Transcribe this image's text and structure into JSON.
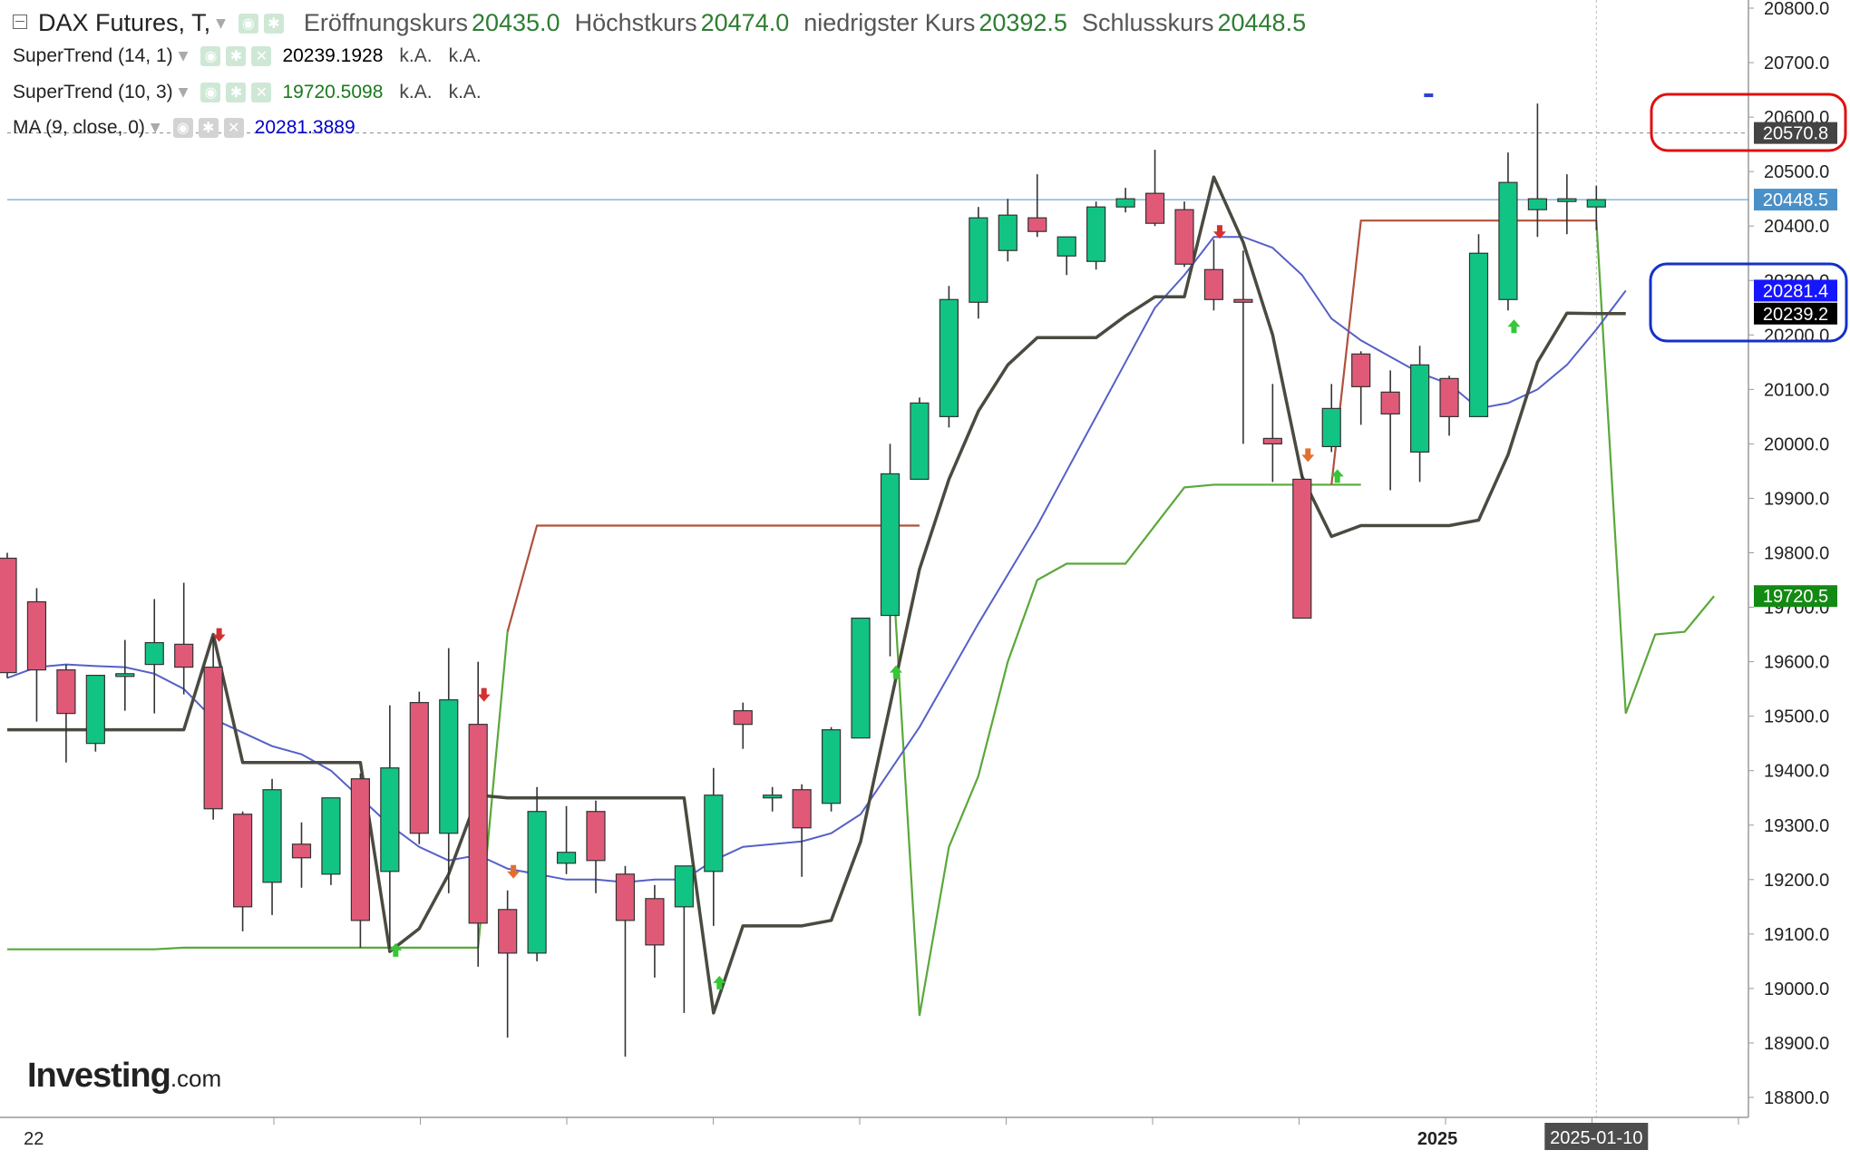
{
  "header": {
    "instrument": "DAX Futures, T,",
    "ohlc": [
      {
        "label": "Eröffnungskurs",
        "value": "20435.0"
      },
      {
        "label": "Höchstkurs",
        "value": "20474.0"
      },
      {
        "label": "niedrigster Kurs",
        "value": "20392.5"
      },
      {
        "label": "Schlusskurs",
        "value": "20448.5"
      }
    ]
  },
  "indicators": [
    {
      "name": "SuperTrend (14, 1)",
      "value": "20239.1928",
      "extra1": "k.A.",
      "extra2": "k.A.",
      "color": "#000000"
    },
    {
      "name": "SuperTrend (10, 3)",
      "value": "19720.5098",
      "extra1": "k.A.",
      "extra2": "k.A.",
      "color": "#1a7a1a"
    },
    {
      "name": "MA (9, close, 0)",
      "value": "20281.3889",
      "color": "#0000cc"
    }
  ],
  "logo": {
    "main": "Investing",
    "suffix": ".com"
  },
  "price_labels": [
    {
      "text": "20570.8",
      "value": 20570.8,
      "bg": "#444444",
      "fg": "#ffffff"
    },
    {
      "text": "20448.5",
      "value": 20448.5,
      "bg": "#4a90c8",
      "fg": "#ffffff"
    },
    {
      "text": "20281.4",
      "value": 20281.4,
      "bg": "#1515ff",
      "fg": "#ffffff"
    },
    {
      "text": "20239.2",
      "value": 20239.2,
      "bg": "#000000",
      "fg": "#ffffff"
    },
    {
      "text": "19720.5",
      "value": 19720.5,
      "bg": "#138a13",
      "fg": "#ffffff"
    }
  ],
  "x_axis_labels": [
    {
      "text": "22",
      "index": 0.9
    },
    {
      "text": "2025",
      "index": 48.6
    }
  ],
  "crosshair_date": "2025-01-10",
  "colors": {
    "up": "#12c483",
    "down": "#e05a78",
    "ma": "#5560c8",
    "supertrend_14_1": "#4a4a40",
    "supertrend_10_3_down": "#b0503c",
    "supertrend_10_3_up": "#5aa83a",
    "highlight_red": "#e01010",
    "highlight_blue": "#1530c8"
  },
  "chart_data": {
    "type": "candlestick",
    "y_range": [
      18750,
      20800
    ],
    "y_ticks": [
      18800,
      18900,
      19000,
      19100,
      19200,
      19300,
      19400,
      19500,
      19600,
      19700,
      19800,
      19900,
      20000,
      20100,
      20200,
      20300,
      20400,
      20500,
      20600,
      20700,
      20800
    ],
    "y_tick_labels": [
      "18800.0",
      "18900.0",
      "19000.0",
      "19100.0",
      "19200.0",
      "19300.0",
      "19400.0",
      "19500.0",
      "19600.0",
      "19700.0",
      "19800.0",
      "19900.0",
      "20000.0",
      "20100.0",
      "20200.0",
      "20300.0",
      "20400.0",
      "20500.0",
      "20600.0",
      "20700.0",
      "20800.0"
    ],
    "grid": false,
    "x_slots": 54,
    "candles": [
      {
        "o": 19790,
        "h": 19800,
        "l": 19570,
        "c": 19580
      },
      {
        "o": 19710,
        "h": 19735,
        "l": 19490,
        "c": 19585
      },
      {
        "o": 19585,
        "h": 19595,
        "l": 19415,
        "c": 19505
      },
      {
        "o": 19450,
        "h": 19570,
        "l": 19435,
        "c": 19575
      },
      {
        "o": 19578,
        "h": 19640,
        "l": 19510,
        "c": 19578
      },
      {
        "o": 19595,
        "h": 19715,
        "l": 19505,
        "c": 19635
      },
      {
        "o": 19632,
        "h": 19745,
        "l": 19540,
        "c": 19590
      },
      {
        "o": 19590,
        "h": 19645,
        "l": 19310,
        "c": 19330
      },
      {
        "o": 19320,
        "h": 19325,
        "l": 19105,
        "c": 19150
      },
      {
        "o": 19195,
        "h": 19385,
        "l": 19135,
        "c": 19365
      },
      {
        "o": 19265,
        "h": 19305,
        "l": 19185,
        "c": 19240
      },
      {
        "o": 19210,
        "h": 19350,
        "l": 19190,
        "c": 19350
      },
      {
        "o": 19385,
        "h": 19395,
        "l": 19075,
        "c": 19125
      },
      {
        "o": 19215,
        "h": 19520,
        "l": 19075,
        "c": 19405
      },
      {
        "o": 19525,
        "h": 19545,
        "l": 19265,
        "c": 19285
      },
      {
        "o": 19285,
        "h": 19625,
        "l": 19175,
        "c": 19530
      },
      {
        "o": 19485,
        "h": 19600,
        "l": 19040,
        "c": 19120
      },
      {
        "o": 19145,
        "h": 19180,
        "l": 18910,
        "c": 19065
      },
      {
        "o": 19065,
        "h": 19370,
        "l": 19050,
        "c": 19325
      },
      {
        "o": 19230,
        "h": 19335,
        "l": 19210,
        "c": 19250
      },
      {
        "o": 19325,
        "h": 19345,
        "l": 19175,
        "c": 19235
      },
      {
        "o": 19210,
        "h": 19225,
        "l": 18875,
        "c": 19125
      },
      {
        "o": 19165,
        "h": 19190,
        "l": 19020,
        "c": 19080
      },
      {
        "o": 19150,
        "h": 19225,
        "l": 18955,
        "c": 19225
      },
      {
        "o": 19215,
        "h": 19405,
        "l": 19115,
        "c": 19355
      },
      {
        "o": 19510,
        "h": 19525,
        "l": 19440,
        "c": 19485
      },
      {
        "o": 19355,
        "h": 19370,
        "l": 19325,
        "c": 19355
      },
      {
        "o": 19365,
        "h": 19375,
        "l": 19205,
        "c": 19295
      },
      {
        "o": 19340,
        "h": 19480,
        "l": 19325,
        "c": 19475
      },
      {
        "o": 19460,
        "h": 19675,
        "l": 19460,
        "c": 19680
      },
      {
        "o": 19685,
        "h": 20000,
        "l": 19610,
        "c": 19945
      },
      {
        "o": 19935,
        "h": 20085,
        "l": 19935,
        "c": 20075
      },
      {
        "o": 20050,
        "h": 20290,
        "l": 20030,
        "c": 20265
      },
      {
        "o": 20260,
        "h": 20435,
        "l": 20230,
        "c": 20415
      },
      {
        "o": 20355,
        "h": 20450,
        "l": 20335,
        "c": 20420
      },
      {
        "o": 20415,
        "h": 20495,
        "l": 20380,
        "c": 20390
      },
      {
        "o": 20345,
        "h": 20375,
        "l": 20310,
        "c": 20380
      },
      {
        "o": 20335,
        "h": 20445,
        "l": 20320,
        "c": 20435
      },
      {
        "o": 20435,
        "h": 20470,
        "l": 20425,
        "c": 20450
      },
      {
        "o": 20460,
        "h": 20540,
        "l": 20400,
        "c": 20405
      },
      {
        "o": 20430,
        "h": 20445,
        "l": 20325,
        "c": 20330
      },
      {
        "o": 20320,
        "h": 20375,
        "l": 20245,
        "c": 20265
      },
      {
        "o": 20265,
        "h": 20355,
        "l": 20000,
        "c": 20260
      },
      {
        "o": 20010,
        "h": 20110,
        "l": 19930,
        "c": 20000
      },
      {
        "o": 19935,
        "h": 19945,
        "l": 19680,
        "c": 19680
      },
      {
        "o": 19995,
        "h": 20110,
        "l": 19985,
        "c": 20065
      },
      {
        "o": 20165,
        "h": 20170,
        "l": 20035,
        "c": 20105
      },
      {
        "o": 20095,
        "h": 20135,
        "l": 19915,
        "c": 20055
      },
      {
        "o": 19985,
        "h": 20180,
        "l": 19930,
        "c": 20145
      },
      {
        "o": 20120,
        "h": 20125,
        "l": 20015,
        "c": 20050
      },
      {
        "o": 20050,
        "h": 20385,
        "l": 20050,
        "c": 20350
      },
      {
        "o": 20265,
        "h": 20535,
        "l": 20245,
        "c": 20480
      },
      {
        "o": 20430,
        "h": 20625,
        "l": 20380,
        "c": 20450
      },
      {
        "o": 20450,
        "h": 20495,
        "l": 20385,
        "c": 20450
      },
      {
        "o": 20435,
        "h": 20474,
        "l": 20392.5,
        "c": 20448.5
      }
    ],
    "series": [
      {
        "name": "MA (9, close, 0)",
        "values": [
          19570,
          19590,
          19595,
          19592,
          19590,
          19578,
          19550,
          19495,
          19470,
          19445,
          19430,
          19400,
          19350,
          19300,
          19260,
          19235,
          19245,
          19220,
          19210,
          19200,
          19200,
          19195,
          19200,
          19200,
          19235,
          19260,
          19265,
          19270,
          19285,
          19320,
          19400,
          19480,
          19575,
          19670,
          19760,
          19850,
          19950,
          20050,
          20150,
          20250,
          20310,
          20380,
          20380,
          20360,
          20310,
          20230,
          20190,
          20160,
          20130,
          20110,
          20065,
          20075,
          20100,
          20145,
          20210,
          20281.4
        ]
      },
      {
        "name": "SuperTrend (14, 1)",
        "values": [
          19475,
          19475,
          19475,
          19475,
          19475,
          19475,
          19475,
          19650,
          19415,
          19415,
          19415,
          19415,
          19415,
          19068,
          19110,
          19210,
          19355,
          19350,
          19350,
          19350,
          19350,
          19350,
          19350,
          19350,
          18955,
          19115,
          19115,
          19115,
          19125,
          19270,
          19520,
          19770,
          19935,
          20060,
          20145,
          20195,
          20195,
          20195,
          20235,
          20270,
          20270,
          20490,
          20370,
          20200,
          19940,
          19830,
          19850,
          19850,
          19850,
          19850,
          19860,
          19980,
          20150,
          20240,
          20239.2,
          20239.2
        ]
      },
      {
        "name": "SuperTrend (10, 3)",
        "segments": [
          {
            "phase": "up",
            "from": 0,
            "values": [
              19072,
              19072,
              19072,
              19072,
              19072,
              19072,
              19075,
              19075,
              19075,
              19075,
              19075,
              19075,
              19075,
              19075,
              19075,
              19075,
              19075,
              19655
            ]
          },
          {
            "phase": "down",
            "from": 17,
            "values": [
              19655,
              19850,
              19850,
              19850,
              19850,
              19850,
              19850,
              19850,
              19850,
              19850,
              19850,
              19850,
              19850,
              19850,
              19850
            ]
          },
          {
            "phase": "up",
            "from": 30,
            "values": [
              19850,
              18950,
              19260,
              19390,
              19600,
              19750,
              19780,
              19780,
              19780,
              19850,
              19920,
              19925,
              19925,
              19925,
              19925,
              19925,
              19925
            ]
          },
          {
            "phase": "down",
            "from": 45,
            "values": [
              19925,
              20410,
              20410,
              20410,
              20410,
              20410,
              20410,
              20410,
              20410,
              20410
            ]
          },
          {
            "phase": "up",
            "from": 54,
            "values": [
              20410,
              19505,
              19650,
              19655,
              19720.5
            ]
          }
        ]
      }
    ],
    "signals": [
      {
        "index": 7.2,
        "value": 19650,
        "direction": "down",
        "color": "#d43030"
      },
      {
        "index": 13.2,
        "value": 19070,
        "direction": "up",
        "color": "#36c736"
      },
      {
        "index": 16.2,
        "value": 19540,
        "direction": "down",
        "color": "#d43030"
      },
      {
        "index": 17.2,
        "value": 19215,
        "direction": "down",
        "color": "#e07030"
      },
      {
        "index": 24.2,
        "value": 19010,
        "direction": "up",
        "color": "#36c736"
      },
      {
        "index": 30.2,
        "value": 19580,
        "direction": "up",
        "color": "#36c736"
      },
      {
        "index": 41.2,
        "value": 20390,
        "direction": "down",
        "color": "#d43030"
      },
      {
        "index": 44.2,
        "value": 19980,
        "direction": "down",
        "color": "#e07030"
      },
      {
        "index": 45.2,
        "value": 19940,
        "direction": "up",
        "color": "#36c736"
      },
      {
        "index": 51.2,
        "value": 20215,
        "direction": "up",
        "color": "#36c736"
      }
    ],
    "reference_lines": [
      {
        "value": 20570.8,
        "style": "dotted",
        "color": "#888888"
      },
      {
        "value": 20448.5,
        "style": "solid",
        "color": "#4a90c8"
      }
    ],
    "crosshair_index": 54,
    "marker": {
      "index": 48.3,
      "value": 20640,
      "color": "#2b3fcf"
    }
  }
}
